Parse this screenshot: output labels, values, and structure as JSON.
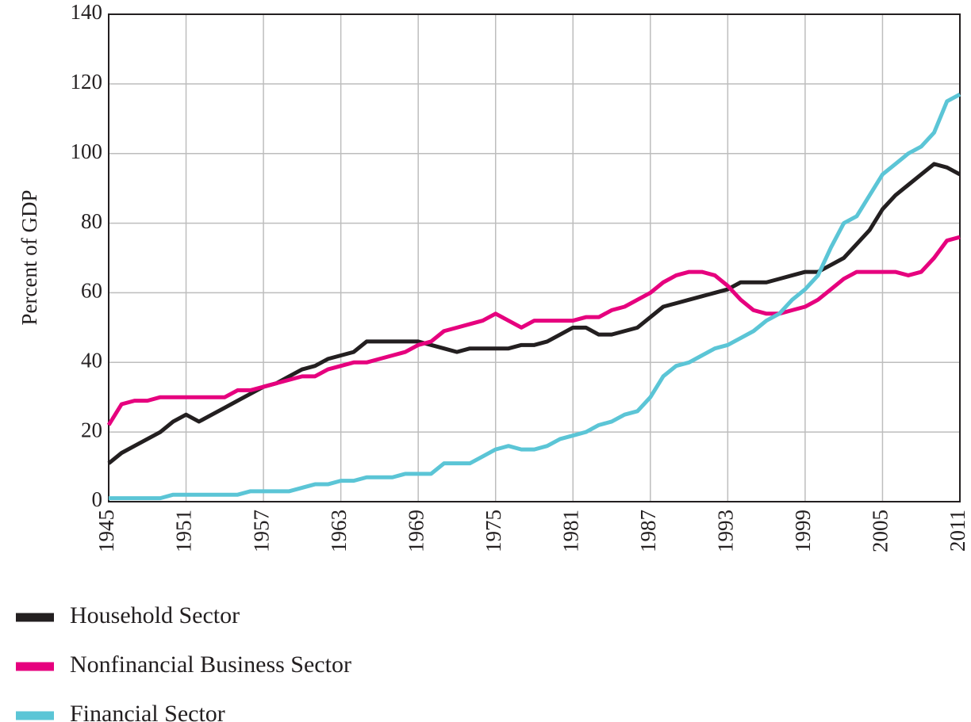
{
  "chart_data": {
    "type": "line",
    "ylabel": "Percent of GDP",
    "x": [
      1945,
      1946,
      1947,
      1948,
      1949,
      1950,
      1951,
      1952,
      1953,
      1954,
      1955,
      1956,
      1957,
      1958,
      1959,
      1960,
      1961,
      1962,
      1963,
      1964,
      1965,
      1966,
      1967,
      1968,
      1969,
      1970,
      1971,
      1972,
      1973,
      1974,
      1975,
      1976,
      1977,
      1978,
      1979,
      1980,
      1981,
      1982,
      1983,
      1984,
      1985,
      1986,
      1987,
      1988,
      1989,
      1990,
      1991,
      1992,
      1993,
      1994,
      1995,
      1996,
      1997,
      1998,
      1999,
      2000,
      2001,
      2002,
      2003,
      2004,
      2005,
      2006,
      2007,
      2008,
      2009,
      2010,
      2011
    ],
    "series": [
      {
        "name": "Household Sector",
        "color": "#231f20",
        "values": [
          11,
          14,
          16,
          18,
          20,
          23,
          25,
          23,
          25,
          27,
          29,
          31,
          33,
          34,
          36,
          38,
          39,
          41,
          42,
          43,
          46,
          46,
          46,
          46,
          46,
          45,
          44,
          43,
          44,
          44,
          44,
          44,
          45,
          45,
          46,
          48,
          50,
          50,
          48,
          48,
          49,
          50,
          53,
          56,
          57,
          58,
          59,
          60,
          61,
          63,
          63,
          63,
          64,
          65,
          66,
          66,
          68,
          70,
          74,
          78,
          84,
          88,
          91,
          94,
          97,
          96,
          94
        ]
      },
      {
        "name": "Nonfinancial Business Sector",
        "color": "#e6007e",
        "values": [
          22,
          28,
          29,
          29,
          30,
          30,
          30,
          30,
          30,
          30,
          32,
          32,
          33,
          34,
          35,
          36,
          36,
          38,
          39,
          40,
          40,
          41,
          42,
          43,
          45,
          46,
          49,
          50,
          51,
          52,
          54,
          52,
          50,
          52,
          52,
          52,
          52,
          53,
          53,
          55,
          56,
          58,
          60,
          63,
          65,
          66,
          66,
          65,
          62,
          58,
          55,
          54,
          54,
          55,
          56,
          58,
          61,
          64,
          66,
          66,
          66,
          66,
          65,
          66,
          70,
          75,
          76
        ]
      },
      {
        "name": "Financial Sector",
        "color": "#5bc5d6",
        "values": [
          1,
          1,
          1,
          1,
          1,
          2,
          2,
          2,
          2,
          2,
          2,
          3,
          3,
          3,
          3,
          4,
          5,
          5,
          6,
          6,
          7,
          7,
          7,
          8,
          8,
          8,
          11,
          11,
          11,
          13,
          15,
          16,
          15,
          15,
          16,
          18,
          19,
          20,
          22,
          23,
          25,
          26,
          30,
          36,
          39,
          40,
          42,
          44,
          45,
          47,
          49,
          52,
          54,
          58,
          61,
          65,
          73,
          80,
          82,
          88,
          94,
          97,
          100,
          102,
          106,
          115,
          117
        ]
      }
    ],
    "xlim": [
      1945,
      2011
    ],
    "xticks": [
      1945,
      1951,
      1957,
      1963,
      1969,
      1975,
      1981,
      1987,
      1993,
      1999,
      2005,
      2011
    ],
    "ylim": [
      0,
      140
    ],
    "yticks": [
      0,
      20,
      40,
      60,
      80,
      100,
      120,
      140
    ],
    "grid": true
  }
}
